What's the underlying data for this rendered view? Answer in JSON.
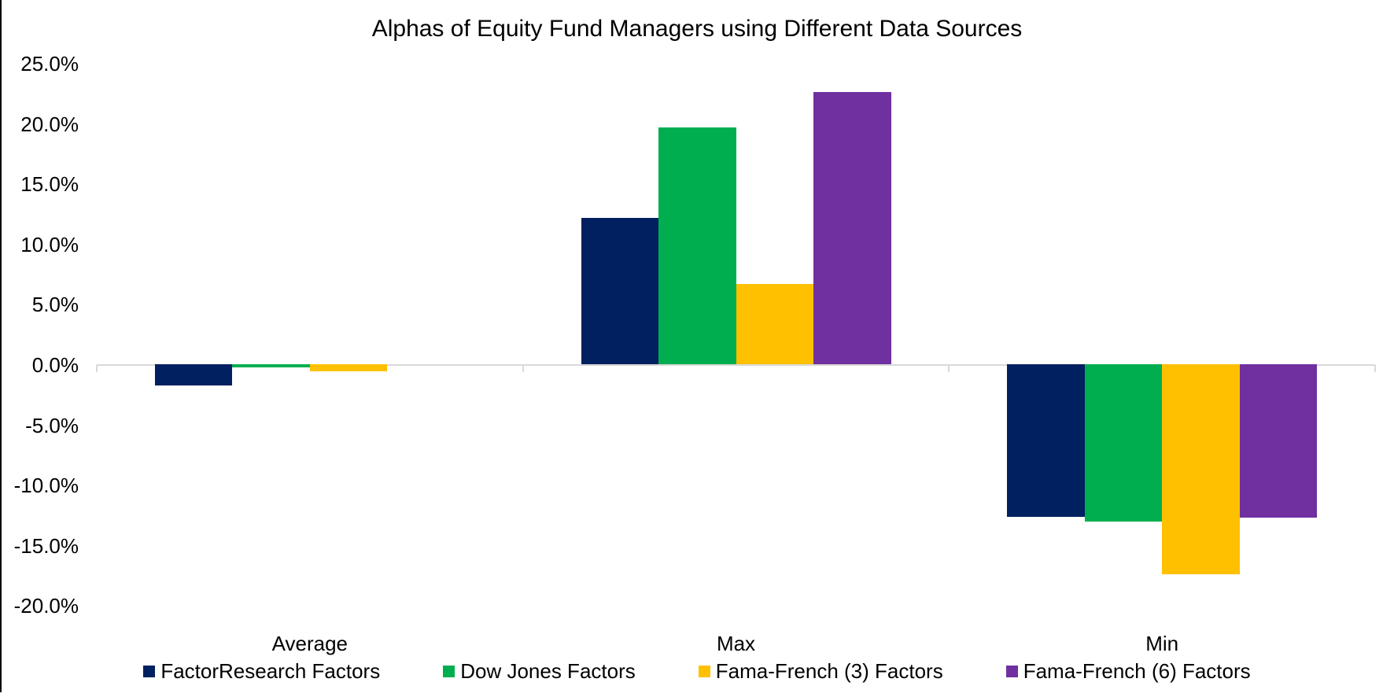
{
  "title": "Alphas of Equity Fund Managers using Different Data Sources",
  "chart_data": {
    "type": "bar",
    "title": "Alphas of Equity Fund Managers using Different Data Sources",
    "categories": [
      "Average",
      "Max",
      "Min"
    ],
    "series": [
      {
        "name": "FactorResearch Factors",
        "color": "#002060",
        "values": [
          -1.7,
          12.2,
          -12.6
        ]
      },
      {
        "name": "Dow Jones Factors",
        "color": "#00AE50",
        "values": [
          -0.2,
          19.7,
          -13.0
        ]
      },
      {
        "name": "Fama-French (3) Factors",
        "color": "#FFC000",
        "values": [
          -0.5,
          6.7,
          -17.4
        ]
      },
      {
        "name": "Fama-French (6) Factors",
        "color": "#7030A0",
        "values": [
          0.0,
          22.7,
          -12.7
        ]
      }
    ],
    "xlabel": "",
    "ylabel": "",
    "ylim": [
      -20,
      25
    ],
    "ytick_step": 5,
    "ytick_labels": [
      "25.0%",
      "20.0%",
      "15.0%",
      "10.0%",
      "5.0%",
      "0.0%",
      "-5.0%",
      "-10.0%",
      "-15.0%",
      "-20.0%"
    ],
    "grid": false,
    "legend_position": "bottom",
    "axis_color": "#D9D9D9"
  },
  "legend": {
    "items": [
      {
        "label": "FactorResearch Factors",
        "color": "#002060"
      },
      {
        "label": "Dow Jones Factors",
        "color": "#00AE50"
      },
      {
        "label": "Fama-French (3) Factors",
        "color": "#FFC000"
      },
      {
        "label": "Fama-French (6) Factors",
        "color": "#7030A0"
      }
    ]
  }
}
